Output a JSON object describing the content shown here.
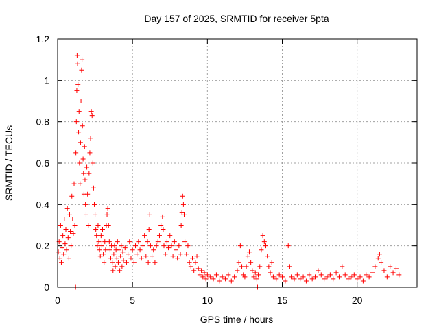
{
  "chart_data": {
    "type": "scatter",
    "title": "Day 157 of 2025, SRMTID for receiver 5pta",
    "xlabel": "GPS time / hours",
    "ylabel": "SRMTID / TECUs",
    "xlim": [
      0,
      24
    ],
    "ylim": [
      0,
      1.2
    ],
    "xticks": [
      0,
      5,
      10,
      15,
      20
    ],
    "yticks": [
      0,
      0.2,
      0.4,
      0.6,
      0.8,
      1,
      1.2
    ],
    "xtick_labels": [
      "0",
      "5",
      "10",
      "15",
      "20"
    ],
    "ytick_labels": [
      "0",
      "0.2",
      "0.4",
      "0.6",
      "0.8",
      "1",
      "1.2"
    ],
    "grid": true,
    "marker": "+",
    "marker_color": "#ff0000",
    "series": [
      {
        "name": "SRMTID",
        "points": [
          [
            0.05,
            0.17
          ],
          [
            0.1,
            0.22
          ],
          [
            0.15,
            0.14
          ],
          [
            0.2,
            0.3
          ],
          [
            0.25,
            0.12
          ],
          [
            0.3,
            0.19
          ],
          [
            0.35,
            0.25
          ],
          [
            0.4,
            0.16
          ],
          [
            0.45,
            0.33
          ],
          [
            0.5,
            0.21
          ],
          [
            0.55,
            0.28
          ],
          [
            0.6,
            0.18
          ],
          [
            0.65,
            0.38
          ],
          [
            0.7,
            0.24
          ],
          [
            0.75,
            0.14
          ],
          [
            0.8,
            0.35
          ],
          [
            0.85,
            0.27
          ],
          [
            0.9,
            0.2
          ],
          [
            0.95,
            0.44
          ],
          [
            1.0,
            0.33
          ],
          [
            1.05,
            0.26
          ],
          [
            1.1,
            0.5
          ],
          [
            1.15,
            0.3
          ],
          [
            1.2,
            0.0
          ],
          [
            1.22,
            0.65
          ],
          [
            1.25,
            0.8
          ],
          [
            1.28,
            0.95
          ],
          [
            1.3,
            1.12
          ],
          [
            1.33,
            1.08
          ],
          [
            1.36,
            0.98
          ],
          [
            1.4,
            0.75
          ],
          [
            1.43,
            0.85
          ],
          [
            1.46,
            0.6
          ],
          [
            1.5,
            0.5
          ],
          [
            1.53,
            0.7
          ],
          [
            1.56,
            0.9
          ],
          [
            1.6,
            1.05
          ],
          [
            1.63,
            1.1
          ],
          [
            1.66,
            0.78
          ],
          [
            1.7,
            0.62
          ],
          [
            1.73,
            0.55
          ],
          [
            1.76,
            0.45
          ],
          [
            1.8,
            0.68
          ],
          [
            1.83,
            0.52
          ],
          [
            1.86,
            0.4
          ],
          [
            1.9,
            0.35
          ],
          [
            1.95,
            0.58
          ],
          [
            2.0,
            0.45
          ],
          [
            2.05,
            0.3
          ],
          [
            2.1,
            0.55
          ],
          [
            2.15,
            0.65
          ],
          [
            2.2,
            0.72
          ],
          [
            2.25,
            0.85
          ],
          [
            2.3,
            0.83
          ],
          [
            2.35,
            0.6
          ],
          [
            2.4,
            0.48
          ],
          [
            2.45,
            0.4
          ],
          [
            2.5,
            0.35
          ],
          [
            2.55,
            0.28
          ],
          [
            2.6,
            0.25
          ],
          [
            2.65,
            0.2
          ],
          [
            2.7,
            0.3
          ],
          [
            2.75,
            0.22
          ],
          [
            2.8,
            0.18
          ],
          [
            2.85,
            0.15
          ],
          [
            2.9,
            0.25
          ],
          [
            2.95,
            0.2
          ],
          [
            3.0,
            0.28
          ],
          [
            3.05,
            0.16
          ],
          [
            3.1,
            0.12
          ],
          [
            3.15,
            0.22
          ],
          [
            3.2,
            0.18
          ],
          [
            3.25,
            0.3
          ],
          [
            3.3,
            0.35
          ],
          [
            3.35,
            0.38
          ],
          [
            3.4,
            0.3
          ],
          [
            3.45,
            0.22
          ],
          [
            3.5,
            0.18
          ],
          [
            3.55,
            0.14
          ],
          [
            3.6,
            0.2
          ],
          [
            3.65,
            0.12
          ],
          [
            3.7,
            0.08
          ],
          [
            3.75,
            0.16
          ],
          [
            3.8,
            0.2
          ],
          [
            3.85,
            0.1
          ],
          [
            3.9,
            0.18
          ],
          [
            3.95,
            0.14
          ],
          [
            4.0,
            0.22
          ],
          [
            4.05,
            0.12
          ],
          [
            4.1,
            0.18
          ],
          [
            4.15,
            0.08
          ],
          [
            4.2,
            0.15
          ],
          [
            4.25,
            0.2
          ],
          [
            4.3,
            0.1
          ],
          [
            4.35,
            0.17
          ],
          [
            4.4,
            0.13
          ],
          [
            4.5,
            0.19
          ],
          [
            4.6,
            0.12
          ],
          [
            4.7,
            0.16
          ],
          [
            4.8,
            0.22
          ],
          [
            4.9,
            0.14
          ],
          [
            5.0,
            0.18
          ],
          [
            5.1,
            0.12
          ],
          [
            5.2,
            0.2
          ],
          [
            5.3,
            0.16
          ],
          [
            5.4,
            0.22
          ],
          [
            5.5,
            0.18
          ],
          [
            5.6,
            0.14
          ],
          [
            5.7,
            0.2
          ],
          [
            5.8,
            0.25
          ],
          [
            5.9,
            0.15
          ],
          [
            6.0,
            0.22
          ],
          [
            6.05,
            0.12
          ],
          [
            6.1,
            0.28
          ],
          [
            6.15,
            0.35
          ],
          [
            6.2,
            0.2
          ],
          [
            6.3,
            0.15
          ],
          [
            6.4,
            0.18
          ],
          [
            6.5,
            0.12
          ],
          [
            6.6,
            0.2
          ],
          [
            6.7,
            0.22
          ],
          [
            6.8,
            0.25
          ],
          [
            6.9,
            0.3
          ],
          [
            7.0,
            0.34
          ],
          [
            7.05,
            0.28
          ],
          [
            7.1,
            0.2
          ],
          [
            7.2,
            0.16
          ],
          [
            7.3,
            0.22
          ],
          [
            7.4,
            0.19
          ],
          [
            7.5,
            0.25
          ],
          [
            7.6,
            0.2
          ],
          [
            7.7,
            0.15
          ],
          [
            7.8,
            0.22
          ],
          [
            7.9,
            0.18
          ],
          [
            8.0,
            0.14
          ],
          [
            8.1,
            0.2
          ],
          [
            8.2,
            0.16
          ],
          [
            8.25,
            0.3
          ],
          [
            8.3,
            0.36
          ],
          [
            8.35,
            0.44
          ],
          [
            8.4,
            0.4
          ],
          [
            8.45,
            0.35
          ],
          [
            8.5,
            0.22
          ],
          [
            8.6,
            0.16
          ],
          [
            8.7,
            0.2
          ],
          [
            8.8,
            0.12
          ],
          [
            8.9,
            0.1
          ],
          [
            9.0,
            0.14
          ],
          [
            9.1,
            0.08
          ],
          [
            9.2,
            0.12
          ],
          [
            9.3,
            0.15
          ],
          [
            9.4,
            0.09
          ],
          [
            9.5,
            0.06
          ],
          [
            9.6,
            0.08
          ],
          [
            9.7,
            0.05
          ],
          [
            9.8,
            0.07
          ],
          [
            9.9,
            0.04
          ],
          [
            10.0,
            0.06
          ],
          [
            10.2,
            0.05
          ],
          [
            10.4,
            0.04
          ],
          [
            10.6,
            0.06
          ],
          [
            10.8,
            0.03
          ],
          [
            11.0,
            0.05
          ],
          [
            11.2,
            0.04
          ],
          [
            11.4,
            0.06
          ],
          [
            11.6,
            0.03
          ],
          [
            11.8,
            0.05
          ],
          [
            12.0,
            0.08
          ],
          [
            12.1,
            0.12
          ],
          [
            12.2,
            0.2
          ],
          [
            12.3,
            0.1
          ],
          [
            12.4,
            0.06
          ],
          [
            12.5,
            0.05
          ],
          [
            12.6,
            0.1
          ],
          [
            12.7,
            0.15
          ],
          [
            12.8,
            0.17
          ],
          [
            12.9,
            0.12
          ],
          [
            13.0,
            0.08
          ],
          [
            13.1,
            0.05
          ],
          [
            13.2,
            0.07
          ],
          [
            13.3,
            0.04
          ],
          [
            13.35,
            0.0
          ],
          [
            13.4,
            0.06
          ],
          [
            13.5,
            0.1
          ],
          [
            13.6,
            0.18
          ],
          [
            13.7,
            0.25
          ],
          [
            13.8,
            0.22
          ],
          [
            13.9,
            0.2
          ],
          [
            14.0,
            0.15
          ],
          [
            14.1,
            0.1
          ],
          [
            14.2,
            0.07
          ],
          [
            14.3,
            0.12
          ],
          [
            14.4,
            0.05
          ],
          [
            14.6,
            0.04
          ],
          [
            14.8,
            0.06
          ],
          [
            15.0,
            0.05
          ],
          [
            15.2,
            0.03
          ],
          [
            15.4,
            0.2
          ],
          [
            15.5,
            0.1
          ],
          [
            15.6,
            0.05
          ],
          [
            15.8,
            0.04
          ],
          [
            16.0,
            0.06
          ],
          [
            16.2,
            0.04
          ],
          [
            16.4,
            0.05
          ],
          [
            16.6,
            0.03
          ],
          [
            16.8,
            0.06
          ],
          [
            17.0,
            0.04
          ],
          [
            17.2,
            0.05
          ],
          [
            17.4,
            0.08
          ],
          [
            17.6,
            0.06
          ],
          [
            17.8,
            0.04
          ],
          [
            18.0,
            0.05
          ],
          [
            18.2,
            0.06
          ],
          [
            18.4,
            0.04
          ],
          [
            18.6,
            0.07
          ],
          [
            18.8,
            0.05
          ],
          [
            19.0,
            0.1
          ],
          [
            19.2,
            0.06
          ],
          [
            19.4,
            0.04
          ],
          [
            19.6,
            0.05
          ],
          [
            19.8,
            0.06
          ],
          [
            20.0,
            0.04
          ],
          [
            20.2,
            0.05
          ],
          [
            20.4,
            0.03
          ],
          [
            20.6,
            0.06
          ],
          [
            20.8,
            0.05
          ],
          [
            21.0,
            0.07
          ],
          [
            21.2,
            0.1
          ],
          [
            21.4,
            0.14
          ],
          [
            21.5,
            0.16
          ],
          [
            21.6,
            0.12
          ],
          [
            21.8,
            0.08
          ],
          [
            22.0,
            0.05
          ],
          [
            22.2,
            0.1
          ],
          [
            22.4,
            0.07
          ],
          [
            22.6,
            0.09
          ],
          [
            22.8,
            0.06
          ]
        ]
      }
    ]
  }
}
